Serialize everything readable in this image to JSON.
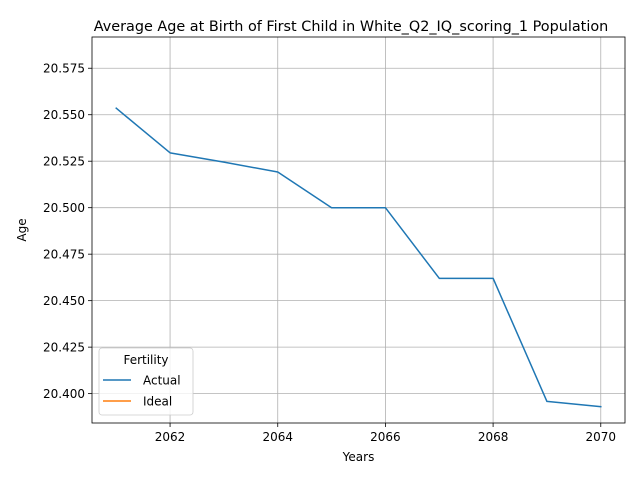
{
  "chart_data": {
    "type": "line",
    "title": "Average Age at Birth of First Child in White_Q2_IQ_scoring_1 Population",
    "xlabel": "Years",
    "ylabel": "Age",
    "xlim": [
      2060.55,
      2070.45
    ],
    "ylim": [
      20.3842,
      20.5918
    ],
    "x_ticks": [
      2062,
      2064,
      2066,
      2068,
      2070
    ],
    "x_tick_labels": [
      "2062",
      "2064",
      "2066",
      "2068",
      "2070"
    ],
    "y_ticks": [
      20.4,
      20.425,
      20.45,
      20.475,
      20.5,
      20.525,
      20.55,
      20.575
    ],
    "y_tick_labels": [
      "20.400",
      "20.425",
      "20.450",
      "20.475",
      "20.500",
      "20.525",
      "20.550",
      "20.575"
    ],
    "grid": true,
    "legend": {
      "title": "Fertility",
      "position": "lower left",
      "entries": [
        "Actual",
        "Ideal"
      ]
    },
    "series": [
      {
        "name": "Actual",
        "color": "#1f77b4",
        "x": [
          2061,
          2062,
          2063,
          2064,
          2065,
          2066,
          2067,
          2068,
          2069,
          2070
        ],
        "y": [
          20.5535,
          20.5295,
          20.5245,
          20.5192,
          20.5,
          20.5,
          20.462,
          20.462,
          20.3958,
          20.393
        ]
      },
      {
        "name": "Ideal",
        "color": "#ff7f0e",
        "x": [],
        "y": []
      }
    ]
  }
}
